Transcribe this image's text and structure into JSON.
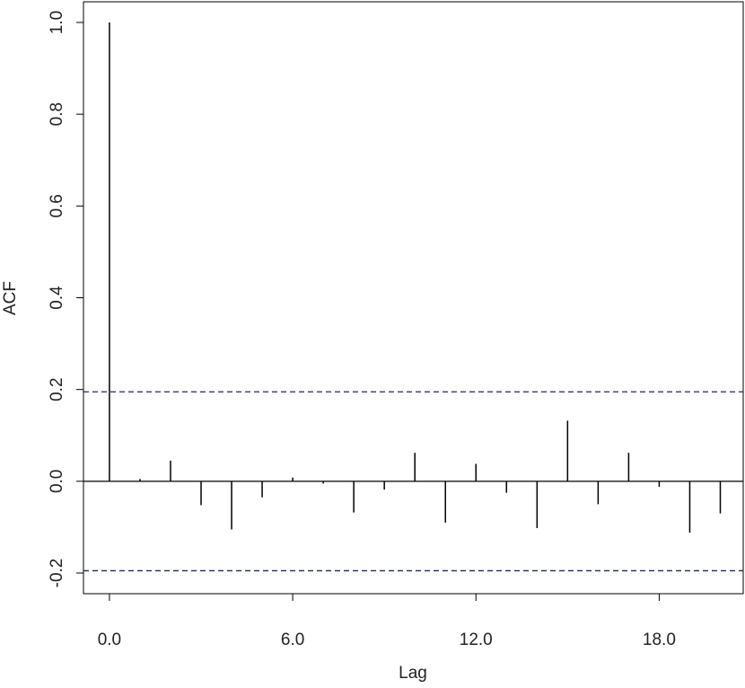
{
  "chart_data": {
    "type": "bar",
    "title": "",
    "xlabel": "Lag",
    "ylabel": "ACF",
    "x": [
      0,
      1,
      2,
      3,
      4,
      5,
      6,
      7,
      8,
      9,
      10,
      11,
      12,
      13,
      14,
      15,
      16,
      17,
      18,
      19,
      20
    ],
    "values": [
      1.0,
      0.005,
      0.045,
      -0.052,
      -0.105,
      -0.035,
      0.008,
      -0.005,
      -0.068,
      -0.018,
      0.062,
      -0.09,
      0.038,
      -0.025,
      -0.102,
      0.132,
      -0.05,
      0.062,
      -0.012,
      -0.112,
      -0.07
    ],
    "confidence_bound": 0.195,
    "ylim": [
      -0.245,
      1.045
    ],
    "xlim": [
      -0.85,
      20.75
    ],
    "xticks": [
      0,
      6,
      12,
      18
    ],
    "xtick_labels": [
      "0.0",
      "6.0",
      "12.0",
      "18.0"
    ],
    "yticks": [
      -0.2,
      0.0,
      0.2,
      0.4,
      0.6,
      0.8,
      1.0
    ],
    "ytick_labels": [
      "-0.2",
      "0.0",
      "0.2",
      "0.4",
      "0.6",
      "0.8",
      "1.0"
    ],
    "grid": false,
    "zero_line": true,
    "colors": {
      "bars": "#000000",
      "bounds": "#1f2a5c",
      "axis": "#000000"
    }
  }
}
